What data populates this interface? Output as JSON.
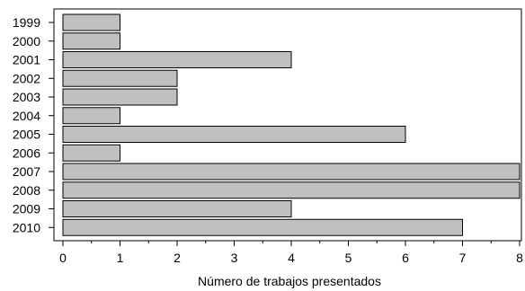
{
  "chart_data": {
    "type": "bar",
    "orientation": "horizontal",
    "categories": [
      "1999",
      "2000",
      "2001",
      "2002",
      "2003",
      "2004",
      "2005",
      "2006",
      "2007",
      "2008",
      "2009",
      "2010"
    ],
    "values": [
      1,
      1,
      4,
      2,
      2,
      1,
      6,
      1,
      8,
      8,
      4,
      7
    ],
    "xlabel": "Número de trabajos presentados",
    "ylabel": "",
    "xlim": [
      0,
      8
    ],
    "x_ticks": [
      "0",
      "1",
      "2",
      "3",
      "4",
      "5",
      "6",
      "7",
      "8"
    ],
    "bar_color": "#c0c0c0",
    "edge_color": "#000000",
    "grid": false
  }
}
